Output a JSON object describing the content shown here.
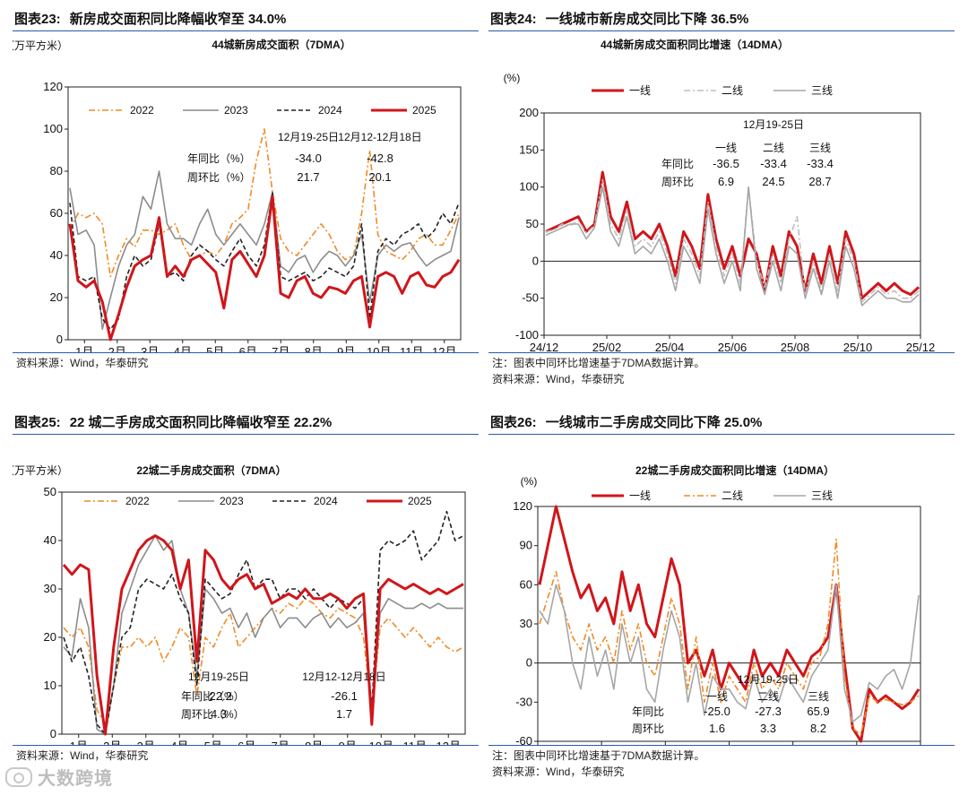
{
  "colors": {
    "s2022": "#f08a24",
    "s2023": "#8c8c8c",
    "s2024": "#222222",
    "s2025": "#d0161b",
    "tier1": "#d0161b",
    "tier2": "#bdbdbd",
    "tier2b": "#f08a24",
    "tier3": "#a6a6a6",
    "accent": "#2b5aa8"
  },
  "source_text": "资料来源：Wind，华泰研究",
  "note_text": "注：图表中同环比增速基于7DMA数据计算。",
  "watermark": "大数跨境",
  "chart_data": [
    {
      "id": "fig23",
      "type": "line",
      "fig_no": "图表23:",
      "heading": "新房成交面积同比降幅收窄至 34.0%",
      "title": "44城新房成交面积（7DMA）",
      "ylabel": "（万平方米）",
      "ylim": [
        0,
        120
      ],
      "yticks": [
        0,
        20,
        40,
        60,
        80,
        100,
        120
      ],
      "x_labels": [
        "1月",
        "2月",
        "3月",
        "4月",
        "5月",
        "6月",
        "7月",
        "8月",
        "9月",
        "10月",
        "11月",
        "12月"
      ],
      "series": [
        {
          "name": "2022",
          "style": "dashdot",
          "color_key": "s2022",
          "values": [
            52,
            60,
            58,
            60,
            55,
            30,
            40,
            48,
            44,
            52,
            52,
            50,
            52,
            55,
            45,
            38,
            40,
            42,
            40,
            45,
            55,
            58,
            62,
            85,
            100,
            70,
            48,
            42,
            40,
            45,
            50,
            55,
            50,
            42,
            38,
            40,
            60,
            90,
            50,
            42,
            40,
            38,
            42,
            48,
            50,
            45,
            45,
            52,
            60
          ]
        },
        {
          "name": "2023",
          "style": "solid",
          "color_key": "s2023",
          "values": [
            72,
            50,
            52,
            45,
            5,
            20,
            35,
            45,
            50,
            68,
            62,
            80,
            55,
            48,
            48,
            45,
            55,
            62,
            50,
            45,
            50,
            55,
            50,
            45,
            55,
            70,
            35,
            32,
            38,
            40,
            32,
            38,
            42,
            40,
            35,
            40,
            50,
            18,
            40,
            45,
            42,
            45,
            46,
            40,
            35,
            38,
            40,
            42,
            58
          ]
        },
        {
          "name": "2024",
          "style": "dashed",
          "color_key": "s2024",
          "values": [
            65,
            30,
            28,
            30,
            10,
            5,
            10,
            30,
            40,
            35,
            38,
            55,
            30,
            32,
            28,
            40,
            45,
            42,
            38,
            35,
            42,
            48,
            40,
            35,
            45,
            70,
            30,
            28,
            30,
            32,
            28,
            30,
            34,
            32,
            30,
            35,
            55,
            10,
            42,
            48,
            45,
            50,
            52,
            55,
            48,
            52,
            60,
            55,
            65
          ]
        },
        {
          "name": "2025",
          "style": "solid",
          "color_key": "s2025",
          "values": [
            55,
            28,
            25,
            28,
            18,
            0,
            12,
            25,
            35,
            38,
            40,
            58,
            30,
            35,
            30,
            38,
            40,
            36,
            32,
            15,
            38,
            42,
            36,
            30,
            40,
            68,
            22,
            20,
            28,
            30,
            22,
            20,
            25,
            24,
            22,
            28,
            30,
            6,
            30,
            32,
            30,
            22,
            30,
            32,
            26,
            25,
            30,
            32,
            38
          ]
        }
      ],
      "annotation": {
        "col_headers": [
          "12月19-25日",
          "12月12-12月18日"
        ],
        "rows": [
          {
            "label": "年同比（%）",
            "values": [
              "-34.0",
              "-42.8"
            ]
          },
          {
            "label": "周环比（%）",
            "values": [
              "21.7",
              "20.1"
            ]
          }
        ]
      },
      "source": true
    },
    {
      "id": "fig24",
      "type": "line",
      "fig_no": "图表24:",
      "heading": "一线城市新房成交同比下降 36.5%",
      "title": "44城新房成交面积同比增速（14DMA）",
      "ylabel": "(%)",
      "ylim": [
        -100,
        200
      ],
      "yticks": [
        -100,
        -50,
        0,
        50,
        100,
        150,
        200
      ],
      "x_labels": [
        "24/12",
        "25/02",
        "25/04",
        "25/06",
        "25/08",
        "25/10",
        "25/12"
      ],
      "series": [
        {
          "name": "一线",
          "style": "solid",
          "color_key": "tier1",
          "values": [
            40,
            45,
            50,
            55,
            60,
            40,
            50,
            120,
            60,
            40,
            80,
            30,
            40,
            30,
            50,
            20,
            -20,
            40,
            20,
            -10,
            90,
            30,
            -10,
            20,
            -20,
            30,
            10,
            -40,
            20,
            -20,
            40,
            20,
            -40,
            10,
            -30,
            20,
            -30,
            40,
            10,
            -50,
            -40,
            -30,
            -40,
            -30,
            -40,
            -45,
            -35
          ]
        },
        {
          "name": "二线",
          "style": "dashdot",
          "color_key": "tier2",
          "values": [
            40,
            42,
            50,
            48,
            55,
            38,
            48,
            110,
            50,
            30,
            70,
            20,
            30,
            20,
            40,
            10,
            -30,
            30,
            10,
            -20,
            80,
            20,
            -20,
            10,
            -30,
            100,
            0,
            -35,
            10,
            -30,
            30,
            60,
            -45,
            0,
            -40,
            10,
            -40,
            30,
            0,
            -55,
            -45,
            -35,
            -45,
            -40,
            -50,
            -50,
            -40
          ]
        },
        {
          "name": "三线",
          "style": "solid",
          "color_key": "tier3",
          "values": [
            35,
            40,
            45,
            50,
            50,
            30,
            45,
            100,
            40,
            20,
            60,
            10,
            20,
            10,
            30,
            0,
            -40,
            20,
            0,
            -30,
            70,
            10,
            -30,
            0,
            -40,
            100,
            -10,
            -45,
            0,
            -40,
            20,
            10,
            -50,
            -10,
            -45,
            0,
            -50,
            20,
            -10,
            -60,
            -50,
            -40,
            -50,
            -50,
            -55,
            -55,
            -45
          ]
        }
      ],
      "annotation": {
        "date": "12月19-25日",
        "col_headers": [
          "一线",
          "二线",
          "三线"
        ],
        "rows": [
          {
            "label": "年同比",
            "values": [
              "-36.5",
              "-33.4",
              "-33.4"
            ]
          },
          {
            "label": "周环比",
            "values": [
              "6.9",
              "24.5",
              "28.7"
            ]
          }
        ]
      },
      "note": true
    },
    {
      "id": "fig25",
      "type": "line",
      "fig_no": "图表25:",
      "heading": "22 城二手房成交面积同比降幅收窄至 22.2%",
      "title": "22城二手房成交面积（7DMA）",
      "ylabel": "（万平方米）",
      "ylim": [
        0,
        50
      ],
      "yticks": [
        0,
        10,
        20,
        30,
        40,
        50
      ],
      "x_labels": [
        "1月",
        "2月",
        "3月",
        "4月",
        "5月",
        "6月",
        "7月",
        "8月",
        "9月",
        "10月",
        "11月",
        "12月"
      ],
      "series": [
        {
          "name": "2022",
          "style": "dashdot",
          "color_key": "s2022",
          "values": [
            22,
            20,
            22,
            18,
            5,
            2,
            10,
            18,
            18,
            20,
            18,
            20,
            15,
            18,
            22,
            20,
            8,
            20,
            18,
            22,
            25,
            18,
            20,
            22,
            24,
            26,
            25,
            27,
            26,
            28,
            27,
            25,
            24,
            26,
            25,
            24,
            20,
            5,
            22,
            24,
            22,
            20,
            22,
            20,
            18,
            20,
            18,
            17,
            18
          ]
        },
        {
          "name": "2023",
          "style": "solid",
          "color_key": "s2023",
          "values": [
            18,
            16,
            28,
            22,
            1,
            0,
            10,
            25,
            30,
            35,
            38,
            41,
            38,
            40,
            30,
            25,
            12,
            30,
            28,
            25,
            26,
            22,
            25,
            20,
            24,
            26,
            22,
            24,
            24,
            22,
            24,
            25,
            22,
            24,
            22,
            23,
            25,
            3,
            25,
            28,
            27,
            26,
            26,
            27,
            26,
            27,
            26,
            26,
            26
          ]
        },
        {
          "name": "2024",
          "style": "dashed",
          "color_key": "s2024",
          "values": [
            20,
            15,
            18,
            12,
            2,
            0,
            10,
            20,
            22,
            30,
            32,
            31,
            30,
            33,
            28,
            25,
            10,
            32,
            30,
            28,
            29,
            33,
            36,
            30,
            32,
            32,
            28,
            30,
            30,
            28,
            30,
            28,
            26,
            28,
            27,
            26,
            28,
            5,
            38,
            40,
            39,
            40,
            42,
            36,
            38,
            40,
            46,
            40,
            41
          ]
        },
        {
          "name": "2025",
          "style": "solid",
          "color_key": "s2025",
          "values": [
            35,
            33,
            35,
            34,
            12,
            0,
            18,
            30,
            34,
            38,
            40,
            41,
            40,
            38,
            30,
            36,
            15,
            38,
            36,
            32,
            30,
            32,
            33,
            30,
            31,
            27,
            28,
            29,
            28,
            30,
            28,
            28,
            29,
            28,
            26,
            28,
            29,
            2,
            30,
            32,
            31,
            30,
            31,
            30,
            29,
            30,
            29,
            30,
            31
          ]
        }
      ],
      "annotation": {
        "col_headers": [
          "12月19-25日",
          "12月12-12月18日"
        ],
        "rows": [
          {
            "label": "年同比（%）",
            "values": [
              "-22.2",
              "-26.1"
            ]
          },
          {
            "label": "周环比（%）",
            "values": [
              "4.3",
              "1.7"
            ]
          }
        ]
      },
      "source": true
    },
    {
      "id": "fig26",
      "type": "line",
      "fig_no": "图表26:",
      "heading": "一线城市二手房成交同比下降 25.0%",
      "title": "22城二手房成交面积同比增速（14DMA）",
      "ylabel": "(%)",
      "ylim": [
        -60,
        120
      ],
      "yticks": [
        -60,
        -30,
        0,
        30,
        60,
        90,
        120
      ],
      "x_labels": [
        "24/12",
        "25/02",
        "25/04",
        "25/06",
        "25/08",
        "25/10",
        "25/12"
      ],
      "series": [
        {
          "name": "一线",
          "style": "solid",
          "color_key": "tier1",
          "values": [
            60,
            90,
            120,
            95,
            70,
            50,
            60,
            40,
            50,
            30,
            70,
            40,
            60,
            30,
            20,
            50,
            80,
            60,
            0,
            10,
            -10,
            10,
            -20,
            0,
            -10,
            -20,
            10,
            -10,
            0,
            -10,
            10,
            0,
            -10,
            5,
            10,
            20,
            60,
            0,
            -50,
            -60,
            -20,
            -30,
            -25,
            -30,
            -35,
            -30,
            -20
          ]
        },
        {
          "name": "二线",
          "style": "dashdot",
          "color_key": "tier2b",
          "values": [
            30,
            50,
            70,
            40,
            20,
            10,
            30,
            10,
            20,
            0,
            40,
            10,
            30,
            0,
            -10,
            20,
            50,
            30,
            -20,
            20,
            -30,
            0,
            -30,
            -10,
            -20,
            -30,
            0,
            -20,
            -10,
            -20,
            0,
            -10,
            -20,
            0,
            5,
            30,
            95,
            -10,
            -50,
            -55,
            -25,
            -30,
            -28,
            -30,
            -32,
            -30,
            -25
          ]
        },
        {
          "name": "三线",
          "style": "solid",
          "color_key": "tier3",
          "values": [
            40,
            30,
            60,
            40,
            0,
            -20,
            20,
            -10,
            10,
            -20,
            30,
            0,
            20,
            -20,
            -30,
            10,
            40,
            20,
            -30,
            0,
            -40,
            -10,
            -20,
            -20,
            -30,
            -35,
            -10,
            -30,
            -20,
            -30,
            -10,
            -20,
            -30,
            -10,
            0,
            10,
            60,
            -20,
            -45,
            -40,
            -15,
            -20,
            -10,
            -5,
            -20,
            0,
            52
          ]
        }
      ],
      "annotation": {
        "date": "12月19-25日",
        "col_headers": [
          "一线",
          "二线",
          "三线"
        ],
        "rows": [
          {
            "label": "年同比",
            "values": [
              "-25.0",
              "-27.3",
              "65.9"
            ]
          },
          {
            "label": "周环比",
            "values": [
              "1.6",
              "3.3",
              "8.2"
            ]
          }
        ]
      },
      "note": true
    }
  ]
}
